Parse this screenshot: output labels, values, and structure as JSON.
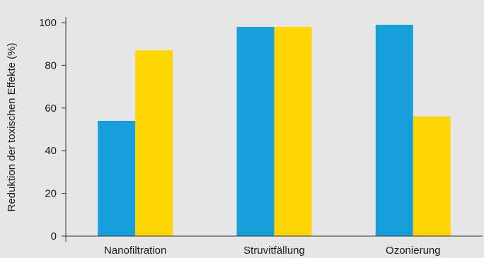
{
  "colors": {
    "background": "#e6e6e6",
    "axis": "#333333",
    "series_blue": "#169fdb",
    "series_yellow": "#fed500"
  },
  "chart_data": {
    "type": "bar",
    "categories": [
      "Nanofiltration",
      "Struvitfällung",
      "Ozonierung"
    ],
    "series": [
      {
        "values": [
          54,
          98,
          99
        ]
      },
      {
        "values": [
          87,
          98,
          56
        ]
      }
    ],
    "xlabel": "",
    "ylabel": "Reduktion der toxischen Effekte (%)",
    "ylim": [
      0,
      100
    ],
    "yticks": [
      0,
      20,
      40,
      60,
      80,
      100
    ],
    "grid": false,
    "legend": "none"
  }
}
